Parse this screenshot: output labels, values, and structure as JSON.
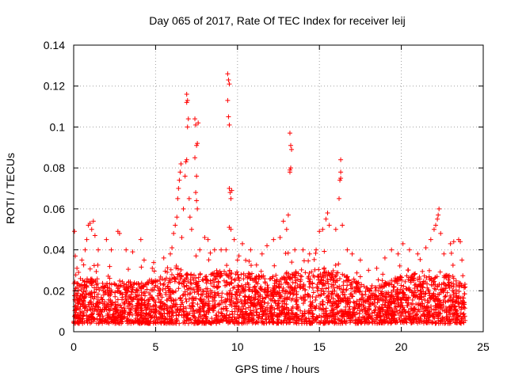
{
  "chart_data": {
    "type": "scatter",
    "title": "Day 065 of 2017, Rate Of TEC Index for receiver leij",
    "xlabel": "GPS time / hours",
    "ylabel": "ROTI / TECUs",
    "xlim": [
      0,
      25
    ],
    "ylim": [
      0,
      0.14
    ],
    "xticks": [
      0,
      5,
      10,
      15,
      20,
      25
    ],
    "xtick_labels": [
      "0",
      "5",
      "10",
      "15",
      "20",
      "25"
    ],
    "yticks": [
      0,
      0.02,
      0.04,
      0.06,
      0.08,
      0.1,
      0.12,
      0.14
    ],
    "ytick_labels": [
      "0",
      "0.02",
      "0.04",
      "0.06",
      "0.08",
      "0.1",
      "0.12",
      "0.14"
    ],
    "grid": true,
    "marker": "+",
    "color": "#ff0000",
    "series": [
      {
        "name": "ROTI",
        "points": [
          [
            0.05,
            0.049
          ],
          [
            0.1,
            0.037
          ],
          [
            0.2,
            0.031
          ],
          [
            0.3,
            0.029
          ],
          [
            0.5,
            0.035
          ],
          [
            0.7,
            0.04
          ],
          [
            0.8,
            0.045
          ],
          [
            0.9,
            0.052
          ],
          [
            1.0,
            0.053
          ],
          [
            1.1,
            0.05
          ],
          [
            1.2,
            0.054
          ],
          [
            1.3,
            0.047
          ],
          [
            1.5,
            0.04
          ],
          [
            2.0,
            0.045
          ],
          [
            2.3,
            0.04
          ],
          [
            2.7,
            0.049
          ],
          [
            2.8,
            0.048
          ],
          [
            3.2,
            0.04
          ],
          [
            3.6,
            0.039
          ],
          [
            4.1,
            0.045
          ],
          [
            4.3,
            0.035
          ],
          [
            4.8,
            0.031
          ],
          [
            5.5,
            0.036
          ],
          [
            5.9,
            0.038
          ],
          [
            6.0,
            0.041
          ],
          [
            6.1,
            0.048
          ],
          [
            6.2,
            0.052
          ],
          [
            6.3,
            0.056
          ],
          [
            6.35,
            0.065
          ],
          [
            6.4,
            0.07
          ],
          [
            6.45,
            0.074
          ],
          [
            6.5,
            0.078
          ],
          [
            6.55,
            0.082
          ],
          [
            6.6,
            0.046
          ],
          [
            6.7,
            0.06
          ],
          [
            6.8,
            0.076
          ],
          [
            6.85,
            0.083
          ],
          [
            6.9,
            0.084
          ],
          [
            6.95,
            0.1
          ],
          [
            7.0,
            0.104
          ],
          [
            6.9,
            0.112
          ],
          [
            6.95,
            0.113
          ],
          [
            6.9,
            0.116
          ],
          [
            7.05,
            0.065
          ],
          [
            7.1,
            0.056
          ],
          [
            7.2,
            0.05
          ],
          [
            7.4,
            0.104
          ],
          [
            7.45,
            0.101
          ],
          [
            7.5,
            0.091
          ],
          [
            7.55,
            0.092
          ],
          [
            7.4,
            0.085
          ],
          [
            7.5,
            0.076
          ],
          [
            7.45,
            0.068
          ],
          [
            7.5,
            0.064
          ],
          [
            7.55,
            0.06
          ],
          [
            7.6,
            0.102
          ],
          [
            7.7,
            0.04
          ],
          [
            8.0,
            0.046
          ],
          [
            8.2,
            0.045
          ],
          [
            8.6,
            0.04
          ],
          [
            9.0,
            0.04
          ],
          [
            9.3,
            0.04
          ],
          [
            9.4,
            0.126
          ],
          [
            9.45,
            0.123
          ],
          [
            9.5,
            0.121
          ],
          [
            9.4,
            0.113
          ],
          [
            9.45,
            0.105
          ],
          [
            9.5,
            0.101
          ],
          [
            9.5,
            0.07
          ],
          [
            9.55,
            0.068
          ],
          [
            9.6,
            0.065
          ],
          [
            9.65,
            0.069
          ],
          [
            9.5,
            0.051
          ],
          [
            9.6,
            0.05
          ],
          [
            9.8,
            0.045
          ],
          [
            10.3,
            0.043
          ],
          [
            10.8,
            0.04
          ],
          [
            11.5,
            0.038
          ],
          [
            11.8,
            0.042
          ],
          [
            12.2,
            0.045
          ],
          [
            12.6,
            0.046
          ],
          [
            12.8,
            0.054
          ],
          [
            13.0,
            0.05
          ],
          [
            13.1,
            0.057
          ],
          [
            13.2,
            0.079
          ],
          [
            13.25,
            0.08
          ],
          [
            13.2,
            0.078
          ],
          [
            13.3,
            0.089
          ],
          [
            13.25,
            0.091
          ],
          [
            13.2,
            0.097
          ],
          [
            13.5,
            0.04
          ],
          [
            14.0,
            0.04
          ],
          [
            14.4,
            0.038
          ],
          [
            14.8,
            0.04
          ],
          [
            15.0,
            0.049
          ],
          [
            15.2,
            0.05
          ],
          [
            15.4,
            0.055
          ],
          [
            15.5,
            0.058
          ],
          [
            15.6,
            0.052
          ],
          [
            16.0,
            0.05
          ],
          [
            16.2,
            0.065
          ],
          [
            16.25,
            0.074
          ],
          [
            16.3,
            0.075
          ],
          [
            16.3,
            0.078
          ],
          [
            16.3,
            0.084
          ],
          [
            16.4,
            0.052
          ],
          [
            16.7,
            0.04
          ],
          [
            17.0,
            0.038
          ],
          [
            17.5,
            0.035
          ],
          [
            18.0,
            0.03
          ],
          [
            18.5,
            0.031
          ],
          [
            19.0,
            0.036
          ],
          [
            19.4,
            0.04
          ],
          [
            19.8,
            0.038
          ],
          [
            20.1,
            0.043
          ],
          [
            20.5,
            0.04
          ],
          [
            21.0,
            0.038
          ],
          [
            21.5,
            0.041
          ],
          [
            21.8,
            0.045
          ],
          [
            22.0,
            0.05
          ],
          [
            22.1,
            0.052
          ],
          [
            22.2,
            0.055
          ],
          [
            22.25,
            0.057
          ],
          [
            22.3,
            0.06
          ],
          [
            22.4,
            0.048
          ],
          [
            22.6,
            0.038
          ],
          [
            23.0,
            0.043
          ],
          [
            23.2,
            0.044
          ],
          [
            23.5,
            0.045
          ],
          [
            23.6,
            0.044
          ],
          [
            23.7,
            0.035
          ]
        ]
      }
    ],
    "dense_band": {
      "x_range": [
        0,
        23.9
      ],
      "y_floor": 0.004,
      "baseline_envelope": [
        [
          0,
          0.025
        ],
        [
          1,
          0.026
        ],
        [
          2,
          0.024
        ],
        [
          3,
          0.025
        ],
        [
          4,
          0.024
        ],
        [
          5,
          0.026
        ],
        [
          6,
          0.028
        ],
        [
          7,
          0.029
        ],
        [
          8,
          0.027
        ],
        [
          9,
          0.031
        ],
        [
          10,
          0.03
        ],
        [
          11,
          0.028
        ],
        [
          12,
          0.027
        ],
        [
          13,
          0.029
        ],
        [
          14,
          0.03
        ],
        [
          15,
          0.032
        ],
        [
          16,
          0.03
        ],
        [
          17,
          0.026
        ],
        [
          18,
          0.022
        ],
        [
          19,
          0.025
        ],
        [
          20,
          0.027
        ],
        [
          21,
          0.028
        ],
        [
          22,
          0.028
        ],
        [
          23,
          0.028
        ],
        [
          23.9,
          0.025
        ]
      ]
    }
  }
}
